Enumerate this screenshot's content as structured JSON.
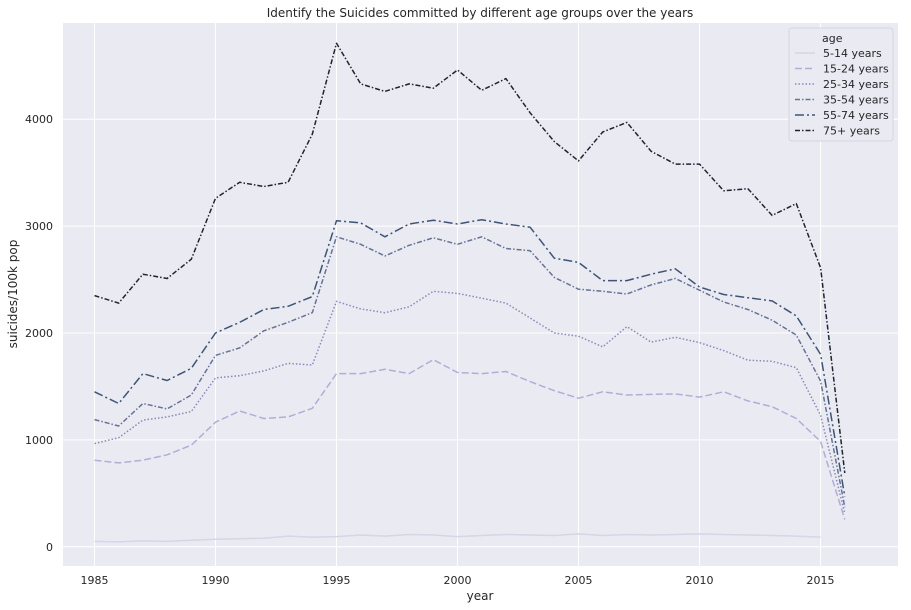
{
  "chart_data": {
    "type": "line",
    "title": "Identify the Suicides committed by different age groups over the years",
    "xlabel": "year",
    "ylabel": "suicides/100k pop",
    "xlim": [
      1983.7,
      2018.2
    ],
    "ylim": [
      -180,
      4900
    ],
    "xticks": [
      1985,
      1990,
      1995,
      2000,
      2005,
      2010,
      2015
    ],
    "yticks": [
      0,
      1000,
      2000,
      3000,
      4000
    ],
    "grid": true,
    "legend": {
      "title": "age",
      "placement": "top-right"
    },
    "x": [
      1985,
      1986,
      1987,
      1988,
      1989,
      1990,
      1991,
      1992,
      1993,
      1994,
      1995,
      1996,
      1997,
      1998,
      1999,
      2000,
      2001,
      2002,
      2003,
      2004,
      2005,
      2006,
      2007,
      2008,
      2009,
      2010,
      2011,
      2012,
      2013,
      2014,
      2015,
      2016
    ],
    "series": [
      {
        "name": "5-14 years",
        "color": "#d5d6e6",
        "dash": "",
        "values": [
          50,
          45,
          55,
          50,
          60,
          70,
          75,
          80,
          100,
          90,
          95,
          110,
          100,
          115,
          110,
          95,
          105,
          115,
          110,
          105,
          120,
          105,
          115,
          110,
          115,
          120,
          115,
          110,
          105,
          100,
          90,
          null
        ]
      },
      {
        "name": "15-24 years",
        "color": "#b0aed7",
        "dash": "7,3",
        "values": [
          810,
          785,
          810,
          860,
          950,
          1165,
          1270,
          1200,
          1215,
          1295,
          1620,
          1620,
          1660,
          1620,
          1750,
          1630,
          1620,
          1640,
          1545,
          1460,
          1390,
          1450,
          1420,
          1425,
          1430,
          1400,
          1450,
          1365,
          1310,
          1200,
          985,
          255
        ]
      },
      {
        "name": "25-34 years",
        "color": "#8b88bb",
        "dash": "1.5,2",
        "values": [
          965,
          1020,
          1185,
          1215,
          1265,
          1580,
          1600,
          1645,
          1715,
          1700,
          2295,
          2225,
          2190,
          2245,
          2390,
          2370,
          2325,
          2280,
          2140,
          2000,
          1970,
          1870,
          2060,
          1915,
          1960,
          1910,
          1835,
          1745,
          1735,
          1675,
          1230,
          310
        ]
      },
      {
        "name": "35-54 years",
        "color": "#667296",
        "dash": "5,2,1.5,2",
        "values": [
          1190,
          1130,
          1340,
          1290,
          1420,
          1790,
          1860,
          2020,
          2100,
          2190,
          2900,
          2830,
          2720,
          2820,
          2890,
          2830,
          2900,
          2790,
          2770,
          2520,
          2410,
          2390,
          2365,
          2450,
          2510,
          2400,
          2290,
          2220,
          2120,
          1980,
          1550,
          370
        ]
      },
      {
        "name": "55-74 years",
        "color": "#3f5475",
        "dash": "9,3,2,3",
        "values": [
          1450,
          1340,
          1620,
          1555,
          1670,
          2000,
          2100,
          2220,
          2250,
          2340,
          3050,
          3030,
          2900,
          3020,
          3055,
          3020,
          3060,
          3020,
          2990,
          2700,
          2660,
          2490,
          2490,
          2550,
          2600,
          2430,
          2360,
          2330,
          2300,
          2160,
          1800,
          470
        ]
      },
      {
        "name": "75+ years",
        "color": "#1d2532",
        "dash": "5,2,1.5,2",
        "values": [
          2350,
          2280,
          2550,
          2510,
          2690,
          3260,
          3410,
          3370,
          3410,
          3860,
          4710,
          4330,
          4260,
          4330,
          4290,
          4460,
          4270,
          4380,
          4060,
          3790,
          3610,
          3880,
          3970,
          3700,
          3580,
          3580,
          3330,
          3350,
          3100,
          3210,
          2610,
          690
        ]
      }
    ]
  }
}
